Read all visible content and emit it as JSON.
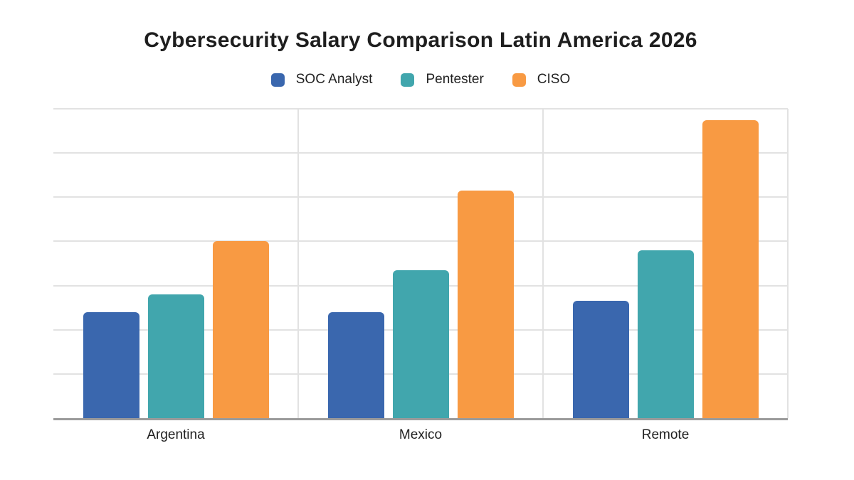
{
  "chart_data": {
    "type": "bar",
    "title": "Cybersecurity Salary Comparison Latin America 2026",
    "categories": [
      "Argentina",
      "Mexico",
      "Remote"
    ],
    "series": [
      {
        "name": "SOC Analyst",
        "color": "#3a67ae",
        "values": [
          2.4,
          2.4,
          2.65
        ]
      },
      {
        "name": "Pentester",
        "color": "#41a6ad",
        "values": [
          2.8,
          3.35,
          3.8
        ]
      },
      {
        "name": "CISO",
        "color": "#f89a43",
        "values": [
          4.0,
          5.15,
          6.75
        ]
      }
    ],
    "xlabel": "",
    "ylabel": "",
    "ylim": [
      0,
      7
    ],
    "y_gridline_interval": 1,
    "y_axis_tick_labels": [],
    "values_unit": "gridline units (no numeric y-axis labels shown in chart)",
    "grid": "horizontal gridlines plus vertical category-boundary gridlines",
    "legend_position": "top center"
  },
  "colors": {
    "background": "#ffffff",
    "title_text": "#1e1e1e",
    "label_text": "#212121",
    "gridline": "#e2e2e2",
    "axis_line": "#9b9b9b"
  }
}
